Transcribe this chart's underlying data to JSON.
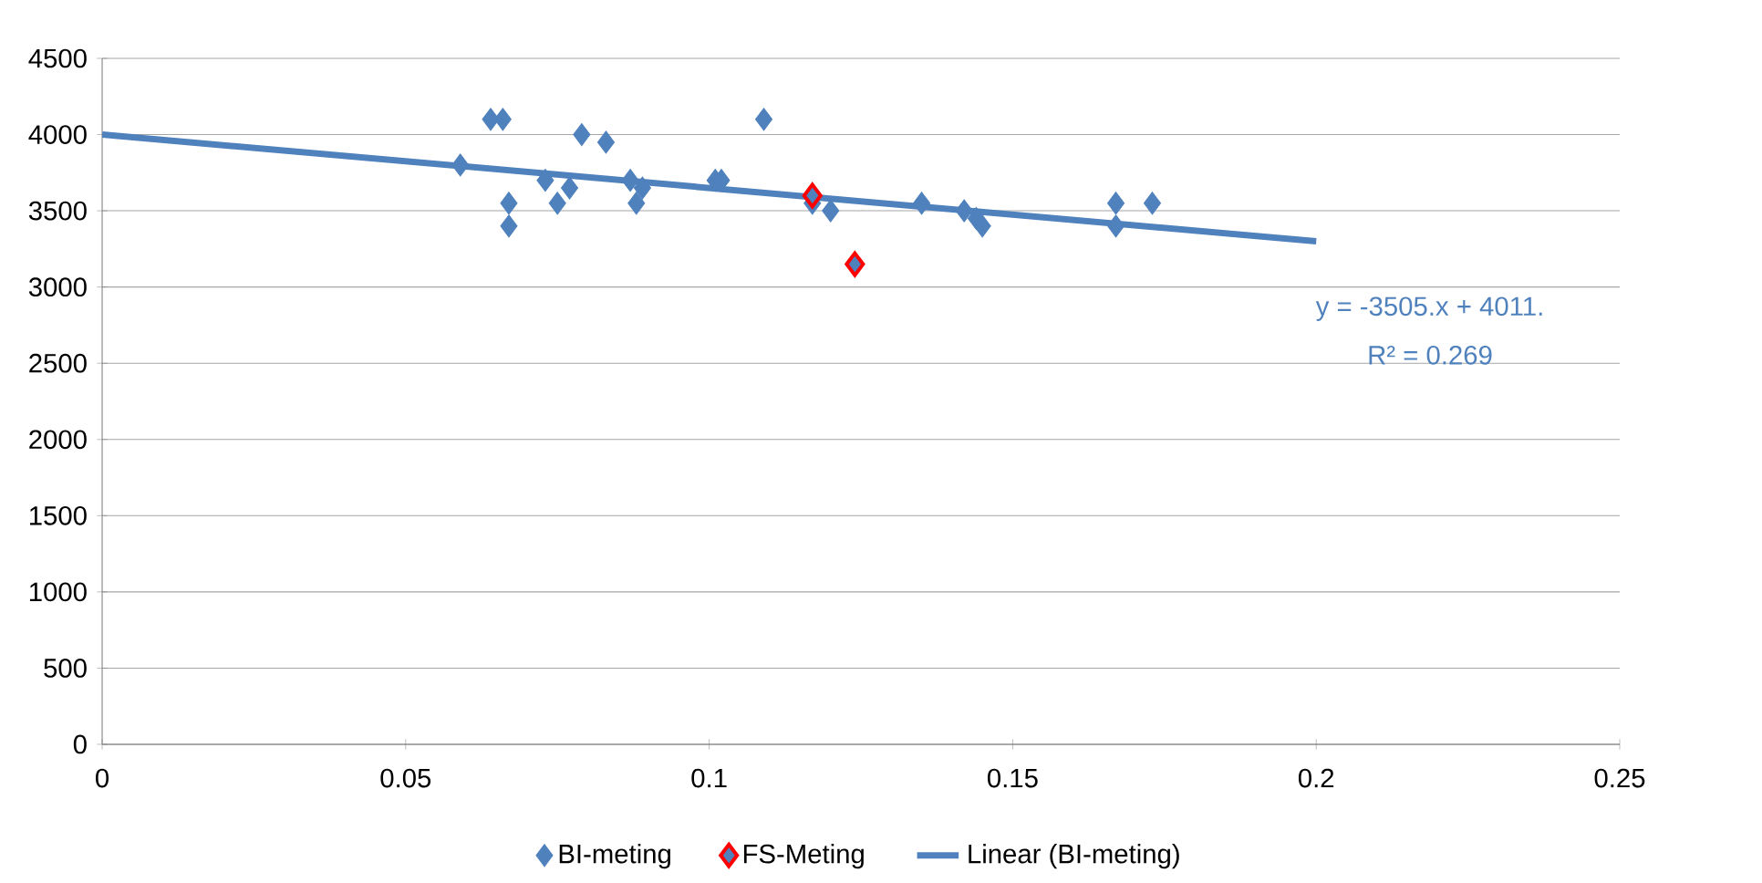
{
  "chart_data": {
    "type": "scatter",
    "xlim": [
      0,
      0.25
    ],
    "ylim": [
      0,
      4500
    ],
    "xticks": [
      0,
      0.05,
      0.1,
      0.15,
      0.2,
      0.25
    ],
    "yticks": [
      0,
      500,
      1000,
      1500,
      2000,
      2500,
      3000,
      3500,
      4000,
      4500
    ],
    "grid": "y",
    "legend": "bottom",
    "annotations": [
      "y = -3505.x + 4011.",
      "R² = 0.269"
    ],
    "series": [
      {
        "name": "BI-meting",
        "color": "#4f81bd",
        "marker": "diamond",
        "x": [
          0.059,
          0.064,
          0.066,
          0.067,
          0.067,
          0.073,
          0.075,
          0.077,
          0.079,
          0.083,
          0.087,
          0.088,
          0.089,
          0.101,
          0.102,
          0.109,
          0.117,
          0.12,
          0.135,
          0.142,
          0.144,
          0.145,
          0.167,
          0.167,
          0.173
        ],
        "values": [
          3800,
          4100,
          4100,
          3550,
          3400,
          3700,
          3550,
          3650,
          4000,
          3950,
          3700,
          3550,
          3650,
          3700,
          3700,
          4100,
          3550,
          3500,
          3550,
          3500,
          3450,
          3400,
          3400,
          3550,
          3550
        ]
      },
      {
        "name": "FS-Meting",
        "color": "#4f81bd",
        "marker": "diamond",
        "x": [
          0.117,
          0.124
        ],
        "values": [
          3600,
          3150
        ]
      },
      {
        "name": "Linear (BI-meting)",
        "type": "line",
        "color": "#4f81bd",
        "x": [
          0,
          0.2
        ],
        "values": [
          4000,
          3300
        ]
      }
    ]
  }
}
